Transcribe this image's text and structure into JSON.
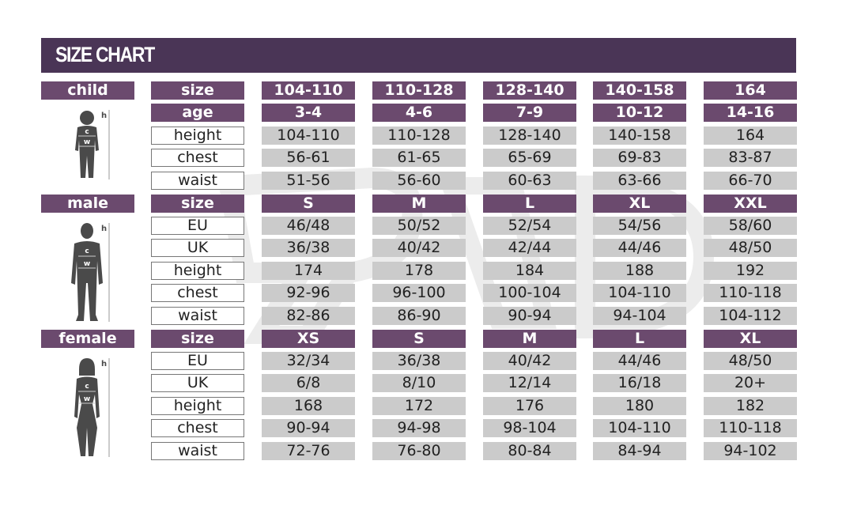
{
  "title": "SIZE CHART",
  "colors": {
    "title_bg": "#4a3556",
    "header_bg": "#6b4a6e",
    "value_bg": "#cbcbcb",
    "figure": "#4a4a4a"
  },
  "sections": [
    {
      "name": "child",
      "figure_icon": "child-silhouette-icon",
      "figure_marks": {
        "height": "h",
        "chest": "c",
        "waist": "w"
      },
      "header": {
        "label": "size",
        "values": [
          "104-110",
          "110-128",
          "128-140",
          "140-158",
          "164"
        ]
      },
      "subheaders": [
        {
          "label": "age",
          "values": [
            "3-4",
            "4-6",
            "7-9",
            "10-12",
            "14-16"
          ]
        }
      ],
      "rows": [
        {
          "label": "height",
          "values": [
            "104-110",
            "110-128",
            "128-140",
            "140-158",
            "164"
          ]
        },
        {
          "label": "chest",
          "values": [
            "56-61",
            "61-65",
            "65-69",
            "69-83",
            "83-87"
          ]
        },
        {
          "label": "waist",
          "values": [
            "51-56",
            "56-60",
            "60-63",
            "63-66",
            "66-70"
          ]
        }
      ]
    },
    {
      "name": "male",
      "figure_icon": "male-silhouette-icon",
      "figure_marks": {
        "height": "h",
        "chest": "c",
        "waist": "w"
      },
      "header": {
        "label": "size",
        "values": [
          "S",
          "M",
          "L",
          "XL",
          "XXL"
        ]
      },
      "subheaders": [],
      "rows": [
        {
          "label": "EU",
          "values": [
            "46/48",
            "50/52",
            "52/54",
            "54/56",
            "58/60"
          ]
        },
        {
          "label": "UK",
          "values": [
            "36/38",
            "40/42",
            "42/44",
            "44/46",
            "48/50"
          ]
        },
        {
          "label": "height",
          "values": [
            "174",
            "178",
            "184",
            "188",
            "192"
          ]
        },
        {
          "label": "chest",
          "values": [
            "92-96",
            "96-100",
            "100-104",
            "104-110",
            "110-118"
          ]
        },
        {
          "label": "waist",
          "values": [
            "82-86",
            "86-90",
            "90-94",
            "94-104",
            "104-112"
          ]
        }
      ]
    },
    {
      "name": "female",
      "figure_icon": "female-silhouette-icon",
      "figure_marks": {
        "height": "h",
        "chest": "c",
        "waist": "w"
      },
      "header": {
        "label": "size",
        "values": [
          "XS",
          "S",
          "M",
          "L",
          "XL"
        ]
      },
      "subheaders": [],
      "rows": [
        {
          "label": "EU",
          "values": [
            "32/34",
            "36/38",
            "40/42",
            "44/46",
            "48/50"
          ]
        },
        {
          "label": "UK",
          "values": [
            "6/8",
            "8/10",
            "12/14",
            "16/18",
            "20+"
          ]
        },
        {
          "label": "height",
          "values": [
            "168",
            "172",
            "176",
            "180",
            "182"
          ]
        },
        {
          "label": "chest",
          "values": [
            "90-94",
            "94-98",
            "98-104",
            "104-110",
            "110-118"
          ]
        },
        {
          "label": "waist",
          "values": [
            "72-76",
            "76-80",
            "80-84",
            "84-94",
            "94-102"
          ]
        }
      ]
    }
  ]
}
